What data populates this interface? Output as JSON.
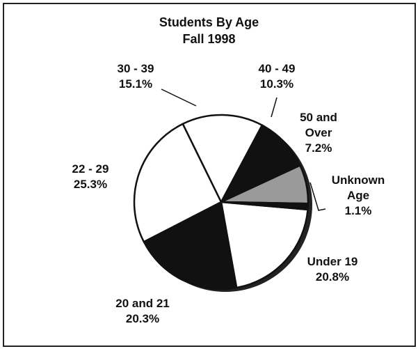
{
  "chart_data": {
    "type": "pie",
    "title": "Students By Age",
    "subtitle": "Fall 1998",
    "categories": [
      "Under 19",
      "20 and 21",
      "22 - 29",
      "30 - 39",
      "40 - 49",
      "50 and Over",
      "Unknown Age"
    ],
    "values": [
      20.8,
      20.3,
      25.3,
      15.1,
      10.3,
      7.2,
      1.1
    ],
    "value_labels": [
      "20.8%",
      "20.3%",
      "25.3%",
      "15.1%",
      "10.3%",
      "7.2%",
      "1.1%"
    ],
    "colors": [
      "#ffffff",
      "#111111",
      "#ffffff",
      "#ffffff",
      "#111111",
      "#9a9a9a",
      "#111111"
    ]
  }
}
